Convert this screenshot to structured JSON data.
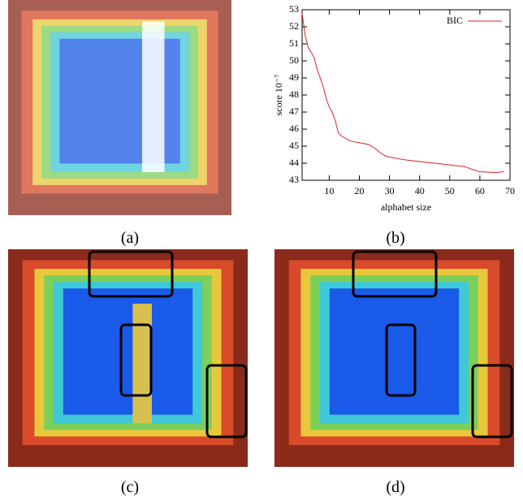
{
  "panels": [
    "(a)",
    "(b)",
    "(c)",
    "(d)"
  ],
  "chart_data": {
    "type": "line",
    "x_label": "alphabet size",
    "y_label": "score 10⁻⁷",
    "series": [
      {
        "name": "BIC",
        "color": "#e02020",
        "x": [
          1,
          2,
          3,
          4,
          5,
          6,
          7,
          8,
          9,
          10,
          11,
          12,
          13,
          14,
          15,
          17,
          20,
          23,
          25,
          27,
          29,
          32,
          35,
          40,
          45,
          50,
          55,
          58,
          60,
          65,
          68
        ],
        "values": [
          52.8,
          51.5,
          50.8,
          50.5,
          50.2,
          49.5,
          49.0,
          48.5,
          47.8,
          47.3,
          47.0,
          46.5,
          45.8,
          45.6,
          45.5,
          45.3,
          45.2,
          45.1,
          44.9,
          44.6,
          44.4,
          44.3,
          44.2,
          44.1,
          44.0,
          43.9,
          43.8,
          43.6,
          43.5,
          43.45,
          43.5
        ]
      }
    ],
    "xlim": [
      1,
      70
    ],
    "xticks": [
      10,
      20,
      30,
      40,
      50,
      60,
      70
    ],
    "ylim": [
      43,
      53
    ],
    "yticks": [
      43,
      44,
      45,
      46,
      47,
      48,
      49,
      50,
      51,
      52,
      53
    ],
    "legend": "top-right"
  }
}
